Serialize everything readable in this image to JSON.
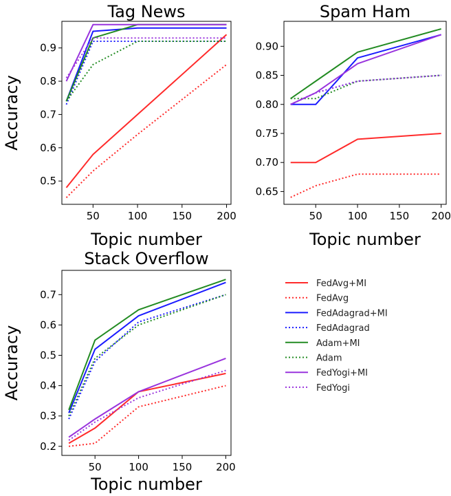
{
  "chart_data": [
    {
      "type": "line",
      "title": "Tag News",
      "xlabel": "Topic number",
      "ylabel": "Accuracy",
      "x": [
        20,
        50,
        100,
        200
      ],
      "xlim": [
        15,
        205
      ],
      "ylim": [
        0.43,
        0.98
      ],
      "xticks": [
        "50",
        "100",
        "150",
        "200"
      ],
      "yticks": [
        "0.5",
        "0.6",
        "0.7",
        "0.8",
        "0.9"
      ],
      "series": [
        {
          "name": "FedAvg+MI",
          "color": "#ff2a2a",
          "style": "solid",
          "values": [
            0.48,
            0.58,
            0.7,
            0.94
          ]
        },
        {
          "name": "FedAvg",
          "color": "#ff2a2a",
          "style": "dotted",
          "values": [
            0.45,
            0.53,
            0.64,
            0.85
          ]
        },
        {
          "name": "FedAdagrad+MI",
          "color": "#1a1aff",
          "style": "solid",
          "values": [
            0.74,
            0.95,
            0.96,
            0.96
          ]
        },
        {
          "name": "FedAdagrad",
          "color": "#1a1aff",
          "style": "dotted",
          "values": [
            0.73,
            0.92,
            0.92,
            0.92
          ]
        },
        {
          "name": "Adam+MI",
          "color": "#228b22",
          "style": "solid",
          "values": [
            0.74,
            0.93,
            0.97,
            0.97
          ]
        },
        {
          "name": "Adam",
          "color": "#228b22",
          "style": "dotted",
          "values": [
            0.74,
            0.85,
            0.92,
            0.92
          ]
        },
        {
          "name": "FedYogi+MI",
          "color": "#9933dd",
          "style": "solid",
          "values": [
            0.8,
            0.97,
            0.97,
            0.97
          ]
        },
        {
          "name": "FedYogi",
          "color": "#9933dd",
          "style": "dotted",
          "values": [
            0.81,
            0.93,
            0.93,
            0.93
          ]
        }
      ]
    },
    {
      "type": "line",
      "title": "Spam Ham",
      "xlabel": "Topic number",
      "ylabel": "",
      "x": [
        20,
        50,
        100,
        200
      ],
      "xlim": [
        12,
        206
      ],
      "ylim": [
        0.628,
        0.943
      ],
      "xticks": [
        "50",
        "100",
        "150",
        "200"
      ],
      "yticks": [
        "0.65",
        "0.70",
        "0.75",
        "0.80",
        "0.85",
        "0.90"
      ],
      "series": [
        {
          "name": "FedAvg+MI",
          "color": "#ff2a2a",
          "style": "solid",
          "values": [
            0.7,
            0.7,
            0.74,
            0.75
          ]
        },
        {
          "name": "FedAvg",
          "color": "#ff2a2a",
          "style": "dotted",
          "values": [
            0.64,
            0.66,
            0.68,
            0.68
          ]
        },
        {
          "name": "FedAdagrad+MI",
          "color": "#1a1aff",
          "style": "solid",
          "values": [
            0.8,
            0.8,
            0.88,
            0.92
          ]
        },
        {
          "name": "FedAdagrad",
          "color": "#1a1aff",
          "style": "dotted",
          "values": [
            0.8,
            0.82,
            0.84,
            0.85
          ]
        },
        {
          "name": "Adam+MI",
          "color": "#228b22",
          "style": "solid",
          "values": [
            0.81,
            0.84,
            0.89,
            0.93
          ]
        },
        {
          "name": "Adam",
          "color": "#228b22",
          "style": "dotted",
          "values": [
            0.81,
            0.81,
            0.84,
            0.85
          ]
        },
        {
          "name": "FedYogi+MI",
          "color": "#9933dd",
          "style": "solid",
          "values": [
            0.8,
            0.82,
            0.87,
            0.92
          ]
        },
        {
          "name": "FedYogi",
          "color": "#9933dd",
          "style": "dotted",
          "values": [
            0.8,
            0.82,
            0.84,
            0.85
          ]
        }
      ]
    },
    {
      "type": "line",
      "title": "Stack Overflow",
      "xlabel": "Topic number",
      "ylabel": "Accuracy",
      "x": [
        20,
        50,
        100,
        200
      ],
      "xlim": [
        12,
        206
      ],
      "ylim": [
        0.17,
        0.78
      ],
      "xticks": [
        "50",
        "100",
        "150",
        "200"
      ],
      "yticks": [
        "0.2",
        "0.3",
        "0.4",
        "0.5",
        "0.6",
        "0.7"
      ],
      "series": [
        {
          "name": "FedAvg+MI",
          "color": "#ff2a2a",
          "style": "solid",
          "values": [
            0.21,
            0.26,
            0.38,
            0.44
          ]
        },
        {
          "name": "FedAvg",
          "color": "#ff2a2a",
          "style": "dotted",
          "values": [
            0.2,
            0.21,
            0.33,
            0.4
          ]
        },
        {
          "name": "FedAdagrad+MI",
          "color": "#1a1aff",
          "style": "solid",
          "values": [
            0.31,
            0.52,
            0.63,
            0.74
          ]
        },
        {
          "name": "FedAdagrad",
          "color": "#1a1aff",
          "style": "dotted",
          "values": [
            0.29,
            0.48,
            0.61,
            0.7
          ]
        },
        {
          "name": "Adam+MI",
          "color": "#228b22",
          "style": "solid",
          "values": [
            0.32,
            0.55,
            0.65,
            0.75
          ]
        },
        {
          "name": "Adam",
          "color": "#228b22",
          "style": "dotted",
          "values": [
            0.3,
            0.49,
            0.6,
            0.7
          ]
        },
        {
          "name": "FedYogi+MI",
          "color": "#9933dd",
          "style": "solid",
          "values": [
            0.23,
            0.29,
            0.38,
            0.49
          ]
        },
        {
          "name": "FedYogi",
          "color": "#9933dd",
          "style": "dotted",
          "values": [
            0.22,
            0.28,
            0.36,
            0.45
          ]
        }
      ]
    }
  ],
  "legend": {
    "placement": "right of bottom chart",
    "entries": [
      {
        "label": "FedAvg+MI",
        "color": "#ff2a2a",
        "style": "solid"
      },
      {
        "label": "FedAvg",
        "color": "#ff2a2a",
        "style": "dotted"
      },
      {
        "label": "FedAdagrad+MI",
        "color": "#1a1aff",
        "style": "solid"
      },
      {
        "label": "FedAdagrad",
        "color": "#1a1aff",
        "style": "dotted"
      },
      {
        "label": "Adam+MI",
        "color": "#228b22",
        "style": "solid"
      },
      {
        "label": "Adam",
        "color": "#228b22",
        "style": "dotted"
      },
      {
        "label": "FedYogi+MI",
        "color": "#9933dd",
        "style": "solid"
      },
      {
        "label": "FedYogi",
        "color": "#9933dd",
        "style": "dotted"
      }
    ]
  }
}
